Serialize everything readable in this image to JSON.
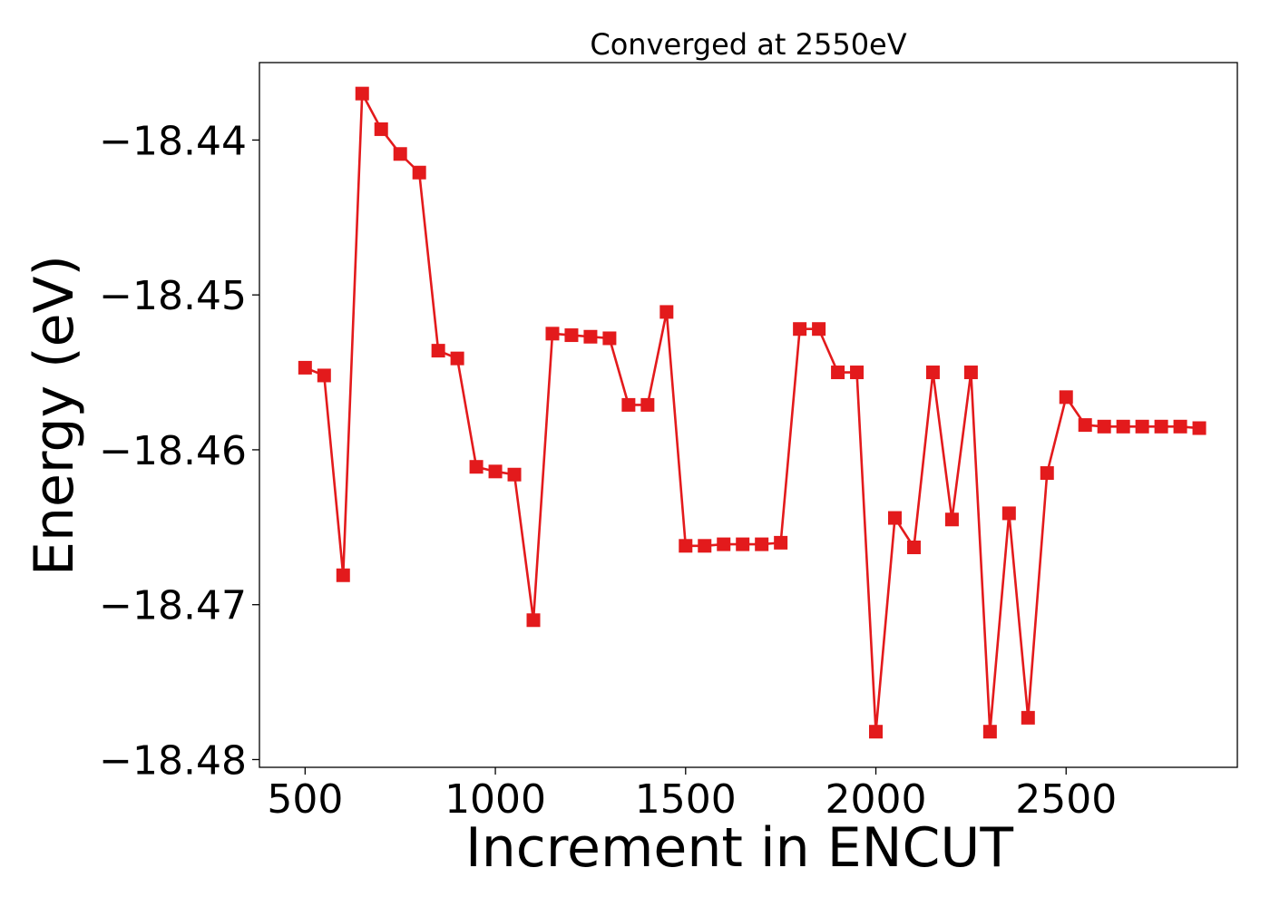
{
  "chart_data": {
    "type": "line",
    "title": "Converged at 2550eV",
    "xlabel": "Increment in ENCUT",
    "ylabel": "Energy (eV)",
    "xlim": [
      380,
      2950
    ],
    "ylim": [
      -18.4805,
      -18.435
    ],
    "x_ticks": [
      500,
      1000,
      1500,
      2000,
      2500
    ],
    "x_tick_labels": [
      "500",
      "1000",
      "1500",
      "2000",
      "2500"
    ],
    "y_ticks": [
      -18.44,
      -18.45,
      -18.46,
      -18.47,
      -18.48
    ],
    "y_tick_labels": [
      "−18.44",
      "−18.45",
      "−18.46",
      "−18.47",
      "−18.48"
    ],
    "grid": false,
    "legend": "none",
    "series": [
      {
        "color": "#e31a1c",
        "marker": "square",
        "x": [
          500,
          550,
          600,
          650,
          700,
          750,
          800,
          850,
          900,
          950,
          1000,
          1050,
          1100,
          1150,
          1200,
          1250,
          1300,
          1350,
          1400,
          1450,
          1500,
          1550,
          1600,
          1650,
          1700,
          1750,
          1800,
          1850,
          1900,
          1950,
          2000,
          2050,
          2100,
          2150,
          2200,
          2250,
          2300,
          2350,
          2400,
          2450,
          2500,
          2550,
          2600,
          2650,
          2700,
          2750,
          2800,
          2850
        ],
        "y": [
          -18.4547,
          -18.4552,
          -18.4681,
          -18.437,
          -18.4393,
          -18.4409,
          -18.4421,
          -18.4536,
          -18.4541,
          -18.4611,
          -18.4614,
          -18.4616,
          -18.471,
          -18.4525,
          -18.4526,
          -18.4527,
          -18.4528,
          -18.4571,
          -18.4571,
          -18.4511,
          -18.4662,
          -18.4662,
          -18.4661,
          -18.4661,
          -18.4661,
          -18.466,
          -18.4522,
          -18.4522,
          -18.455,
          -18.455,
          -18.4782,
          -18.4644,
          -18.4663,
          -18.455,
          -18.4645,
          -18.455,
          -18.4782,
          -18.4641,
          -18.4773,
          -18.4615,
          -18.4566,
          -18.4584,
          -18.4585,
          -18.4585,
          -18.4585,
          -18.4585,
          -18.4585,
          -18.4586
        ]
      }
    ]
  }
}
